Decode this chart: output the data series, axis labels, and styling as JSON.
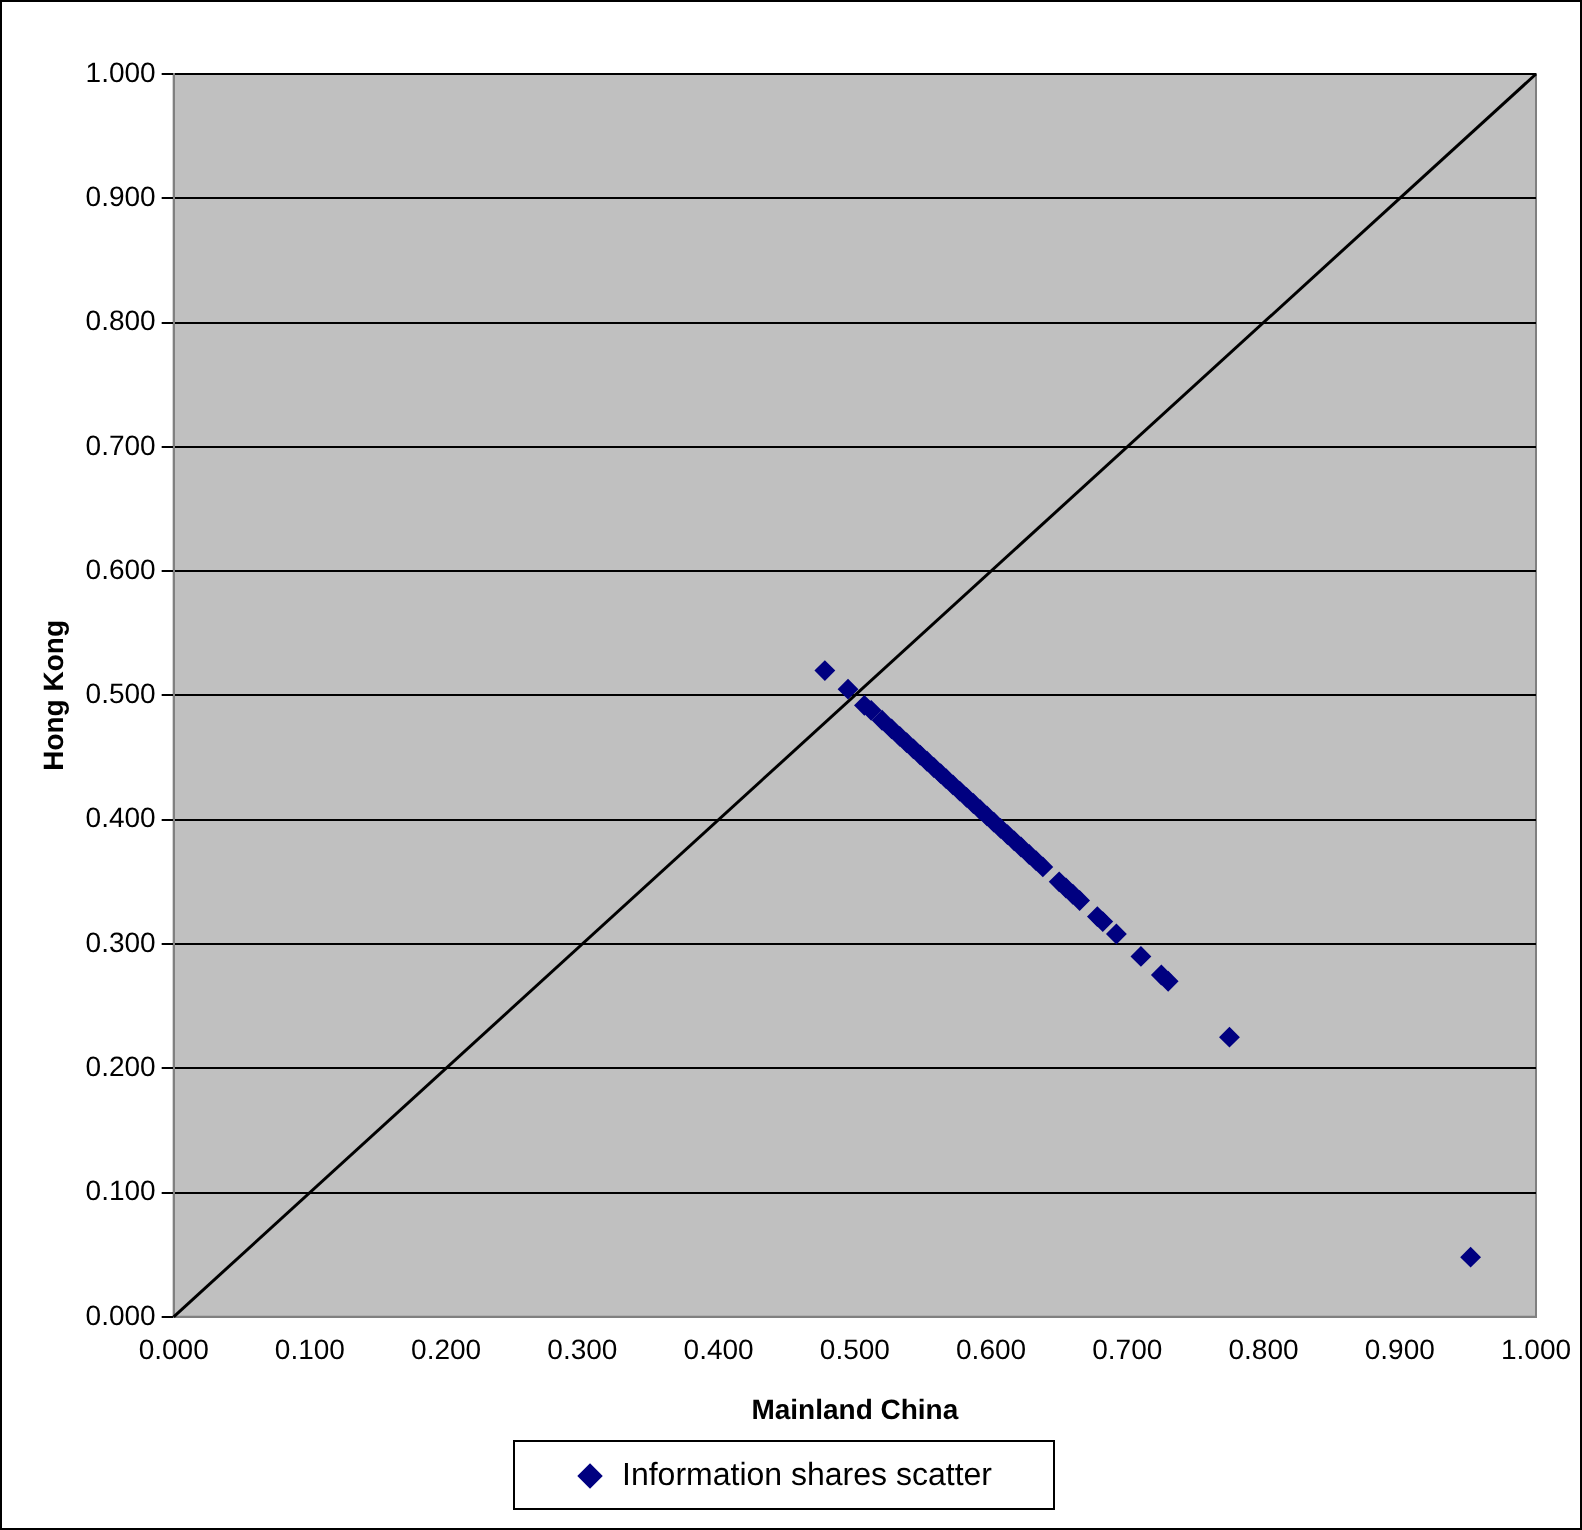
{
  "chart_data": {
    "type": "scatter",
    "xlabel": "Mainland China",
    "ylabel": "Hong Kong",
    "series": [
      {
        "name": "Information shares scatter",
        "color": "#000080",
        "x": [
          0.478,
          0.495,
          0.507,
          0.512,
          0.52,
          0.527,
          0.533,
          0.538,
          0.543,
          0.548,
          0.553,
          0.558,
          0.563,
          0.567,
          0.572,
          0.577,
          0.582,
          0.587,
          0.592,
          0.597,
          0.602,
          0.607,
          0.612,
          0.617,
          0.622,
          0.628,
          0.633,
          0.638,
          0.65,
          0.655,
          0.66,
          0.665,
          0.678,
          0.682,
          0.692,
          0.71,
          0.725,
          0.73,
          0.775,
          0.952
        ],
        "values": [
          0.52,
          0.505,
          0.492,
          0.488,
          0.48,
          0.473,
          0.467,
          0.462,
          0.457,
          0.452,
          0.447,
          0.442,
          0.437,
          0.433,
          0.428,
          0.423,
          0.418,
          0.413,
          0.408,
          0.403,
          0.398,
          0.393,
          0.388,
          0.383,
          0.378,
          0.372,
          0.367,
          0.362,
          0.35,
          0.345,
          0.34,
          0.335,
          0.322,
          0.318,
          0.308,
          0.29,
          0.275,
          0.27,
          0.225,
          0.048
        ]
      },
      {
        "type": "line",
        "color": "#000000",
        "x": [
          0,
          1
        ],
        "values": [
          0,
          1
        ],
        "marker": "none"
      }
    ],
    "xlim": [
      0,
      1
    ],
    "ylim": [
      0,
      1
    ],
    "xticks": [
      {
        "value": 0,
        "label": "0.000"
      },
      {
        "value": 0.1,
        "label": "0.100"
      },
      {
        "value": 0.2,
        "label": "0.200"
      },
      {
        "value": 0.3,
        "label": "0.300"
      },
      {
        "value": 0.4,
        "label": "0.400"
      },
      {
        "value": 0.5,
        "label": "0.500"
      },
      {
        "value": 0.6,
        "label": "0.600"
      },
      {
        "value": 0.7,
        "label": "0.700"
      },
      {
        "value": 0.8,
        "label": "0.800"
      },
      {
        "value": 0.9,
        "label": "0.900"
      },
      {
        "value": 1,
        "label": "1.000"
      }
    ],
    "yticks": [
      {
        "value": 0,
        "label": "0.000"
      },
      {
        "value": 0.1,
        "label": "0.100"
      },
      {
        "value": 0.2,
        "label": "0.200"
      },
      {
        "value": 0.3,
        "label": "0.300"
      },
      {
        "value": 0.4,
        "label": "0.400"
      },
      {
        "value": 0.5,
        "label": "0.500"
      },
      {
        "value": 0.6,
        "label": "0.600"
      },
      {
        "value": 0.7,
        "label": "0.700"
      },
      {
        "value": 0.8,
        "label": "0.800"
      },
      {
        "value": 0.9,
        "label": "0.900"
      },
      {
        "value": 1,
        "label": "1.000"
      }
    ],
    "grid": "y",
    "legend": "bottom",
    "marker": "diamond"
  }
}
